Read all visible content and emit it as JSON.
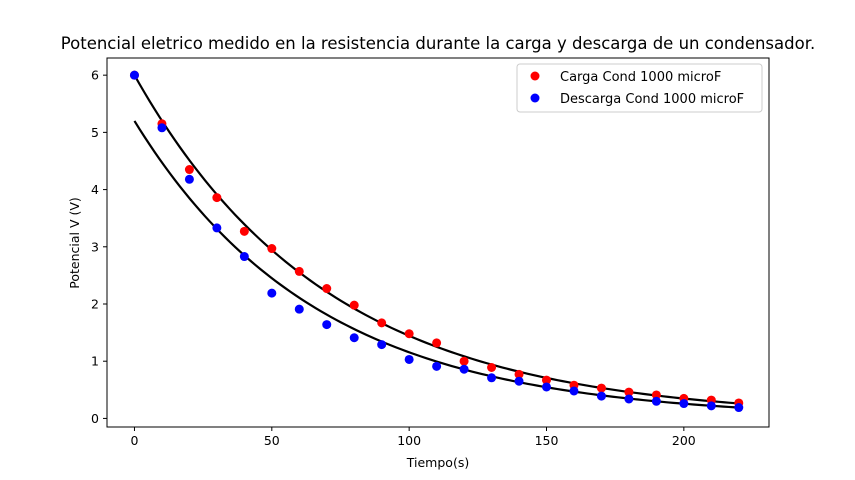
{
  "chart_data": {
    "type": "scatter",
    "title": "Potencial eletrico medido en la resistencia durante la carga y descarga de un condensador.",
    "xlabel": "Tiempo(s)",
    "ylabel": "Potencial V (V)",
    "xlim": [
      -10,
      231
    ],
    "ylim": [
      -0.15,
      6.3
    ],
    "xticks": [
      0,
      50,
      100,
      150,
      200
    ],
    "yticks": [
      0,
      1,
      2,
      3,
      4,
      5,
      6
    ],
    "grid": false,
    "legend_position": "top-right",
    "series": [
      {
        "name": "Carga Cond 1000 microF",
        "color": "#ff0000",
        "x": [
          0,
          10,
          20,
          30,
          40,
          50,
          60,
          70,
          80,
          90,
          100,
          110,
          120,
          130,
          140,
          150,
          160,
          170,
          180,
          190,
          200,
          210,
          220
        ],
        "y": [
          6.0,
          5.15,
          4.35,
          3.86,
          3.27,
          2.97,
          2.57,
          2.27,
          1.98,
          1.67,
          1.48,
          1.32,
          1.0,
          0.89,
          0.77,
          0.67,
          0.58,
          0.53,
          0.46,
          0.41,
          0.35,
          0.32,
          0.27
        ]
      },
      {
        "name": "Descarga Cond 1000 microF",
        "color": "#0000ff",
        "x": [
          0,
          10,
          20,
          30,
          40,
          50,
          60,
          70,
          80,
          90,
          100,
          110,
          120,
          130,
          140,
          150,
          160,
          170,
          180,
          190,
          200,
          210,
          220
        ],
        "y": [
          6.0,
          5.08,
          4.18,
          3.33,
          2.83,
          2.19,
          1.91,
          1.64,
          1.41,
          1.29,
          1.03,
          0.91,
          0.86,
          0.71,
          0.65,
          0.55,
          0.48,
          0.39,
          0.34,
          0.3,
          0.26,
          0.22,
          0.19
        ]
      }
    ],
    "fit_curves": [
      {
        "color": "#000000",
        "a": 6.0,
        "tau": 70.2,
        "x_range": [
          0,
          220
        ]
      },
      {
        "color": "#000000",
        "a": 5.2,
        "tau": 66.5,
        "x_range": [
          0,
          220
        ]
      }
    ]
  }
}
